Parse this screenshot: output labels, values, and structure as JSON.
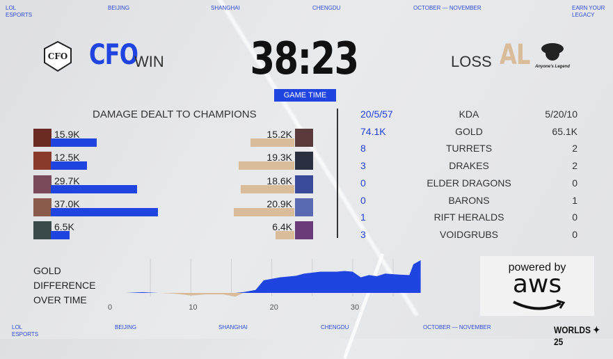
{
  "header": {
    "left_brand": [
      "LOL",
      "ESPORTS"
    ],
    "cities": [
      "BEIJING",
      "SHANGHAI",
      "CHENGDU"
    ],
    "dates": "OCTOBER — NOVEMBER",
    "tagline": [
      "EARN YOUR",
      "LEGACY"
    ]
  },
  "footer": {
    "left_brand": [
      "LOL",
      "ESPORTS"
    ],
    "cities": [
      "BEIJING",
      "SHANGHAI",
      "CHENGDU"
    ],
    "dates": "OCTOBER — NOVEMBER",
    "event_logo": "WORLDS 25"
  },
  "match": {
    "blue_team": "CFO",
    "blue_result": "WIN",
    "red_team": "AL",
    "red_result": "LOSS",
    "red_logo_text": "Anyone's Legend",
    "time": "38:23",
    "time_label": "GAME TIME",
    "colors": {
      "blue": "#1f44e0",
      "red": "#d9bc9a"
    }
  },
  "damage": {
    "title": "DAMAGE DEALT TO CHAMPIONS",
    "blue": [
      {
        "label": "15.9K",
        "value": 15.9
      },
      {
        "label": "12.5K",
        "value": 12.5
      },
      {
        "label": "29.7K",
        "value": 29.7
      },
      {
        "label": "37.0K",
        "value": 37.0
      },
      {
        "label": "6.5K",
        "value": 6.5
      }
    ],
    "red": [
      {
        "label": "15.2K",
        "value": 15.2
      },
      {
        "label": "19.3K",
        "value": 19.3
      },
      {
        "label": "18.6K",
        "value": 18.6
      },
      {
        "label": "20.9K",
        "value": 20.9
      },
      {
        "label": "6.4K",
        "value": 6.4
      }
    ]
  },
  "stats": [
    {
      "blue": "20/5/57",
      "name": "KDA",
      "red": "5/20/10"
    },
    {
      "blue": "74.1K",
      "name": "GOLD",
      "red": "65.1K"
    },
    {
      "blue": "8",
      "name": "TURRETS",
      "red": "2"
    },
    {
      "blue": "3",
      "name": "DRAKES",
      "red": "2"
    },
    {
      "blue": "0",
      "name": "ELDER DRAGONS",
      "red": "0"
    },
    {
      "blue": "0",
      "name": "BARONS",
      "red": "1"
    },
    {
      "blue": "1",
      "name": "RIFT HERALDS",
      "red": "0"
    },
    {
      "blue": "3",
      "name": "VOIDGRUBS",
      "red": "0"
    }
  ],
  "gold_chart": {
    "title_lines": [
      "GOLD",
      "DIFFERENCE",
      "OVER TIME"
    ],
    "sponsor": [
      "powered by",
      "aws"
    ]
  },
  "chart_data": {
    "type": "area",
    "xticks": [
      "0",
      "10",
      "20",
      "30"
    ],
    "xlim": [
      0,
      38.4
    ],
    "x": [
      0,
      2,
      4,
      6,
      8,
      10,
      12,
      14,
      15.5,
      16.5,
      18,
      19,
      21,
      23,
      24,
      26,
      28,
      29,
      30,
      31,
      32,
      33,
      34,
      36,
      37,
      37.5,
      38.4
    ],
    "values": [
      0,
      0,
      200,
      0,
      -200,
      -700,
      -400,
      -400,
      -1000,
      200,
      800,
      3400,
      4200,
      4600,
      5200,
      5700,
      5700,
      5900,
      5700,
      4200,
      4800,
      4500,
      5200,
      4900,
      4800,
      7700,
      8800
    ],
    "positive_color": "#1f44e0",
    "negative_color": "#d9bc9a",
    "grid": "vertical"
  }
}
